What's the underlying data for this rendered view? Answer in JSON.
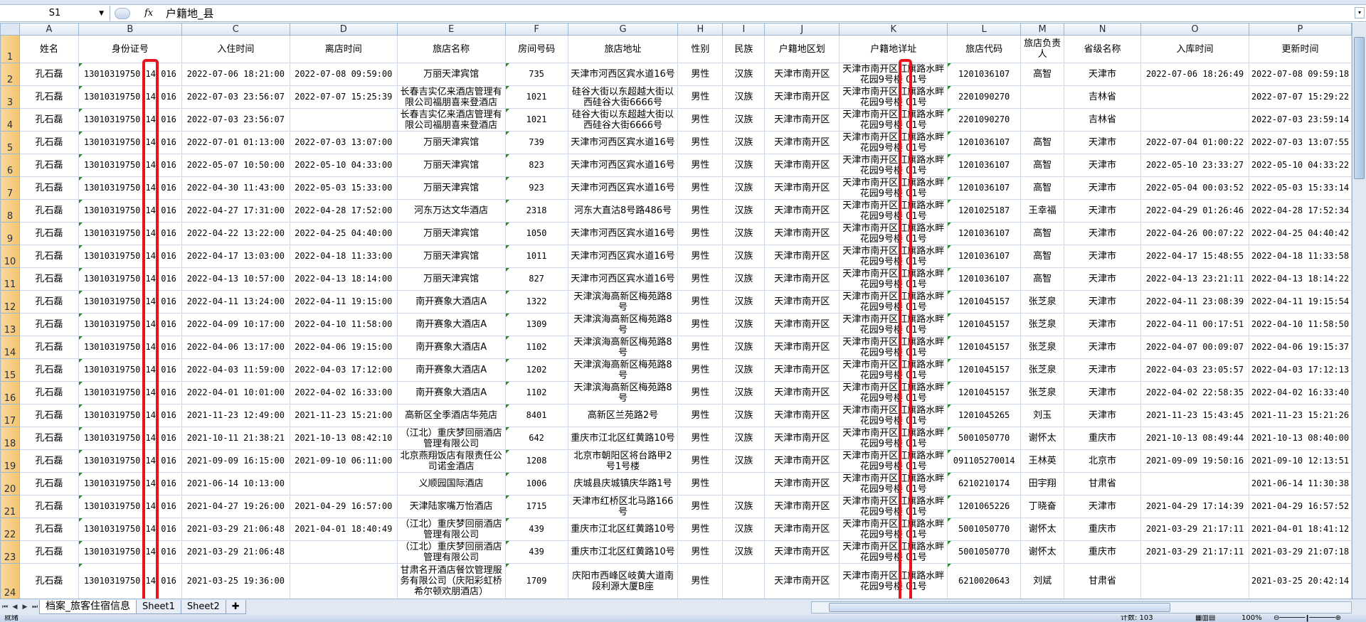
{
  "formula_bar": {
    "name_box": "S1",
    "fx": "fx",
    "formula": "户籍地_县"
  },
  "columns": [
    "A",
    "B",
    "C",
    "D",
    "E",
    "F",
    "G",
    "H",
    "I",
    "J",
    "K",
    "L",
    "M",
    "N",
    "O",
    "P"
  ],
  "headers": [
    "姓名",
    "身份证号",
    "入住时间",
    "离店时间",
    "旅店名称",
    "房间号码",
    "旅店地址",
    "性别",
    "民族",
    "户籍地区划",
    "户籍地详址",
    "旅店代码",
    "旅店负责人",
    "省级名称",
    "入库时间",
    "更新时间"
  ],
  "rows": [
    {
      "num": "2",
      "cells": [
        "孔石磊",
        "13010319750 14 016",
        "2022-07-06 18:21:00",
        "2022-07-08 09:59:00",
        "万丽天津宾馆",
        "735",
        "天津市河西区宾水道16号",
        "男性",
        "汉族",
        "天津市南开区",
        "天津市南开区红旗路水畔花园9号楼 01号",
        "1201036107",
        "高智",
        "天津市",
        "2022-07-06 18:26:49",
        "2022-07-08 09:59:18"
      ]
    },
    {
      "num": "3",
      "cells": [
        "孔石磊",
        "13010319750 14 016",
        "2022-07-03 23:56:07",
        "2022-07-07 15:25:39",
        "长春吉实亿来酒店管理有限公司福朋喜来登酒店",
        "1021",
        "硅谷大街以东超越大街以西硅谷大街6666号",
        "男性",
        "汉族",
        "天津市南开区",
        "天津市南开区红旗路水畔花园9号楼 01号",
        "2201090270",
        "",
        "吉林省",
        "",
        "2022-07-07 15:29:22"
      ]
    },
    {
      "num": "4",
      "cells": [
        "孔石磊",
        "13010319750 14 016",
        "2022-07-03 23:56:07",
        "",
        "长春吉实亿来酒店管理有限公司福朋喜来登酒店",
        "1021",
        "硅谷大街以东超越大街以西硅谷大街6666号",
        "男性",
        "汉族",
        "天津市南开区",
        "天津市南开区红旗路水畔花园9号楼 01号",
        "2201090270",
        "",
        "吉林省",
        "",
        "2022-07-03 23:59:14"
      ]
    },
    {
      "num": "5",
      "cells": [
        "孔石磊",
        "13010319750 14 016",
        "2022-07-01 01:13:00",
        "2022-07-03 13:07:00",
        "万丽天津宾馆",
        "739",
        "天津市河西区宾水道16号",
        "男性",
        "汉族",
        "天津市南开区",
        "天津市南开区红旗路水畔花园9号楼 01号",
        "1201036107",
        "高智",
        "天津市",
        "2022-07-04 01:00:22",
        "2022-07-03 13:07:55"
      ]
    },
    {
      "num": "6",
      "cells": [
        "孔石磊",
        "13010319750 14 016",
        "2022-05-07 10:50:00",
        "2022-05-10 04:33:00",
        "万丽天津宾馆",
        "823",
        "天津市河西区宾水道16号",
        "男性",
        "汉族",
        "天津市南开区",
        "天津市南开区红旗路水畔花园9号楼 01号",
        "1201036107",
        "高智",
        "天津市",
        "2022-05-10 23:33:27",
        "2022-05-10 04:33:22"
      ]
    },
    {
      "num": "7",
      "cells": [
        "孔石磊",
        "13010319750 14 016",
        "2022-04-30 11:43:00",
        "2022-05-03 15:33:00",
        "万丽天津宾馆",
        "923",
        "天津市河西区宾水道16号",
        "男性",
        "汉族",
        "天津市南开区",
        "天津市南开区红旗路水畔花园9号楼 01号",
        "1201036107",
        "高智",
        "天津市",
        "2022-05-04 00:03:52",
        "2022-05-03 15:33:14"
      ]
    },
    {
      "num": "8",
      "cells": [
        "孔石磊",
        "13010319750 14 016",
        "2022-04-27 17:31:00",
        "2022-04-28 17:52:00",
        "河东万达文华酒店",
        "2318",
        "河东大直沽8号路486号",
        "男性",
        "汉族",
        "天津市南开区",
        "天津市南开区红旗路水畔花园9号楼 01号",
        "1201025187",
        "王幸福",
        "天津市",
        "2022-04-29 01:26:46",
        "2022-04-28 17:52:34"
      ]
    },
    {
      "num": "9",
      "cells": [
        "孔石磊",
        "13010319750 14 016",
        "2022-04-22 13:22:00",
        "2022-04-25 04:40:00",
        "万丽天津宾馆",
        "1050",
        "天津市河西区宾水道16号",
        "男性",
        "汉族",
        "天津市南开区",
        "天津市南开区红旗路水畔花园9号楼 01号",
        "1201036107",
        "高智",
        "天津市",
        "2022-04-26 00:07:22",
        "2022-04-25 04:40:42"
      ]
    },
    {
      "num": "10",
      "cells": [
        "孔石磊",
        "13010319750 14 016",
        "2022-04-17 13:03:00",
        "2022-04-18 11:33:00",
        "万丽天津宾馆",
        "1011",
        "天津市河西区宾水道16号",
        "男性",
        "汉族",
        "天津市南开区",
        "天津市南开区红旗路水畔花园9号楼 01号",
        "1201036107",
        "高智",
        "天津市",
        "2022-04-17 15:48:55",
        "2022-04-18 11:33:58"
      ]
    },
    {
      "num": "11",
      "cells": [
        "孔石磊",
        "13010319750 14 016",
        "2022-04-13 10:57:00",
        "2022-04-13 18:14:00",
        "万丽天津宾馆",
        "827",
        "天津市河西区宾水道16号",
        "男性",
        "汉族",
        "天津市南开区",
        "天津市南开区红旗路水畔花园9号楼 01号",
        "1201036107",
        "高智",
        "天津市",
        "2022-04-13 23:21:11",
        "2022-04-13 18:14:22"
      ]
    },
    {
      "num": "12",
      "cells": [
        "孔石磊",
        "13010319750 14 016",
        "2022-04-11 13:24:00",
        "2022-04-11 19:15:00",
        "南开赛象大酒店A",
        "1322",
        "天津滨海高新区梅苑路8号",
        "男性",
        "汉族",
        "天津市南开区",
        "天津市南开区红旗路水畔花园9号楼 01号",
        "1201045157",
        "张芝泉",
        "天津市",
        "2022-04-11 23:08:39",
        "2022-04-11 19:15:54"
      ]
    },
    {
      "num": "13",
      "cells": [
        "孔石磊",
        "13010319750 14 016",
        "2022-04-09 10:17:00",
        "2022-04-10 11:58:00",
        "南开赛象大酒店A",
        "1309",
        "天津滨海高新区梅苑路8号",
        "男性",
        "汉族",
        "天津市南开区",
        "天津市南开区红旗路水畔花园9号楼 01号",
        "1201045157",
        "张芝泉",
        "天津市",
        "2022-04-11 00:17:51",
        "2022-04-10 11:58:50"
      ]
    },
    {
      "num": "14",
      "cells": [
        "孔石磊",
        "13010319750 14 016",
        "2022-04-06 13:17:00",
        "2022-04-06 19:15:00",
        "南开赛象大酒店A",
        "1102",
        "天津滨海高新区梅苑路8号",
        "男性",
        "汉族",
        "天津市南开区",
        "天津市南开区红旗路水畔花园9号楼 01号",
        "1201045157",
        "张芝泉",
        "天津市",
        "2022-04-07 00:09:07",
        "2022-04-06 19:15:37"
      ]
    },
    {
      "num": "15",
      "cells": [
        "孔石磊",
        "13010319750 14 016",
        "2022-04-03 11:59:00",
        "2022-04-03 17:12:00",
        "南开赛象大酒店A",
        "1202",
        "天津滨海高新区梅苑路8号",
        "男性",
        "汉族",
        "天津市南开区",
        "天津市南开区红旗路水畔花园9号楼 01号",
        "1201045157",
        "张芝泉",
        "天津市",
        "2022-04-03 23:05:57",
        "2022-04-03 17:12:13"
      ]
    },
    {
      "num": "16",
      "cells": [
        "孔石磊",
        "13010319750 14 016",
        "2022-04-01 10:01:00",
        "2022-04-02 16:33:00",
        "南开赛象大酒店A",
        "1102",
        "天津滨海高新区梅苑路8号",
        "男性",
        "汉族",
        "天津市南开区",
        "天津市南开区红旗路水畔花园9号楼 01号",
        "1201045157",
        "张芝泉",
        "天津市",
        "2022-04-02 22:58:35",
        "2022-04-02 16:33:40"
      ]
    },
    {
      "num": "17",
      "cells": [
        "孔石磊",
        "13010319750 14 016",
        "2021-11-23 12:49:00",
        "2021-11-23 15:21:00",
        "高新区全季酒店华苑店",
        "8401",
        "高新区兰苑路2号",
        "男性",
        "汉族",
        "天津市南开区",
        "天津市南开区红旗路水畔花园9号楼 01号",
        "1201045265",
        "刘玉",
        "天津市",
        "2021-11-23 15:43:45",
        "2021-11-23 15:21:26"
      ]
    },
    {
      "num": "18",
      "cells": [
        "孔石磊",
        "13010319750 14 016",
        "2021-10-11 21:38:21",
        "2021-10-13 08:42:10",
        "（江北）重庆梦回丽酒店管理有限公司",
        "642",
        "重庆市江北区红黄路10号",
        "男性",
        "汉族",
        "天津市南开区",
        "天津市南开区红旗路水畔花园9号楼 01号",
        "5001050770",
        "谢怀太",
        "重庆市",
        "2021-10-13 08:49:44",
        "2021-10-13 08:40:00"
      ]
    },
    {
      "num": "19",
      "cells": [
        "孔石磊",
        "13010319750 14 016",
        "2021-09-09 16:15:00",
        "2021-09-10 06:11:00",
        "北京燕翔饭店有限责任公司诺金酒店",
        "1208",
        "北京市朝阳区将台路甲2号1号楼",
        "男性",
        "汉族",
        "天津市南开区",
        "天津市南开区红旗路水畔花园9号楼 01号",
        "091105270014",
        "王林英",
        "北京市",
        "2021-09-09 19:50:16",
        "2021-09-10 12:13:51"
      ]
    },
    {
      "num": "20",
      "cells": [
        "孔石磊",
        "13010319750 14 016",
        "2021-06-14 10:13:00",
        "",
        "义顺园国际酒店",
        "1006",
        "庆城县庆城镇庆华路1号",
        "男性",
        "",
        "天津市南开区",
        "天津市南开区红旗路水畔花园9号楼 01号",
        "6210210174",
        "田宇翔",
        "甘肃省",
        "",
        "2021-06-14 11:30:38"
      ]
    },
    {
      "num": "21",
      "cells": [
        "孔石磊",
        "13010319750 14 016",
        "2021-04-27 19:26:00",
        "2021-04-29 16:57:00",
        "天津陆家嘴万怡酒店",
        "1715",
        "天津市红桥区北马路166号",
        "男性",
        "汉族",
        "天津市南开区",
        "天津市南开区红旗路水畔花园9号楼 01号",
        "1201065226",
        "丁晓奋",
        "天津市",
        "2021-04-29 17:14:39",
        "2021-04-29 16:57:52"
      ]
    },
    {
      "num": "22",
      "cells": [
        "孔石磊",
        "13010319750 14 016",
        "2021-03-29 21:06:48",
        "2021-04-01 18:40:49",
        "（江北）重庆梦回丽酒店管理有限公司",
        "439",
        "重庆市江北区红黄路10号",
        "男性",
        "汉族",
        "天津市南开区",
        "天津市南开区红旗路水畔花园9号楼 01号",
        "5001050770",
        "谢怀太",
        "重庆市",
        "2021-03-29 21:17:11",
        "2021-04-01 18:41:12"
      ]
    },
    {
      "num": "23",
      "cells": [
        "孔石磊",
        "13010319750 14 016",
        "2021-03-29 21:06:48",
        "",
        "（江北）重庆梦回丽酒店管理有限公司",
        "439",
        "重庆市江北区红黄路10号",
        "男性",
        "汉族",
        "天津市南开区",
        "天津市南开区红旗路水畔花园9号楼 01号",
        "5001050770",
        "谢怀太",
        "重庆市",
        "2021-03-29 21:17:11",
        "2021-03-29 21:07:18"
      ]
    },
    {
      "num": "24",
      "cells": [
        "孔石磊",
        "13010319750 14 016",
        "2021-03-25 19:36:00",
        "",
        "甘肃名开酒店餐饮管理服务有限公司（庆阳彩虹桥希尔顿欢朋酒店）",
        "1709",
        "庆阳市西峰区岐黄大道南段利源大厦B座",
        "男性",
        "",
        "天津市南开区",
        "天津市南开区红旗路水畔花园9号楼 01号",
        "6210020643",
        "刘斌",
        "甘肃省",
        "",
        "2021-03-25 20:42:14"
      ]
    }
  ],
  "sheet_tabs": [
    "档案_旅客住宿信息",
    "Sheet1",
    "Sheet2"
  ],
  "status": {
    "ready": "就绪",
    "count": "计数: 103",
    "zoom": "100%"
  },
  "colors": {
    "highlight_box": "#e8141b",
    "selected_header": "#f3c46d",
    "grid_line": "#d0d7e5"
  }
}
